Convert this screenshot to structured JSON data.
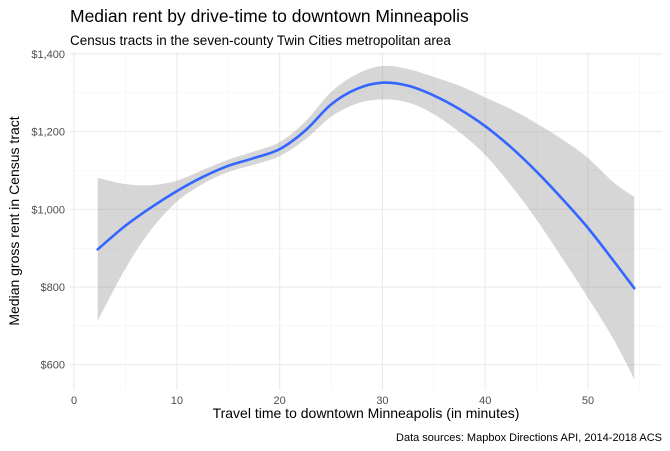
{
  "chart_data": {
    "type": "line",
    "title": "Median rent by drive-time to downtown Minneapolis",
    "subtitle": "Census tracts in the seven-county Twin Cities metropolitan area",
    "xlabel": "Travel time to downtown Minneapolis (in minutes)",
    "ylabel": "Median gross rent in Census tract",
    "caption": "Data sources: Mapbox Directions API, 2014-2018 ACS",
    "xlim": [
      -0.4,
      57.2
    ],
    "ylim": [
      535,
      1405
    ],
    "x_ticks": [
      0,
      10,
      20,
      30,
      40,
      50
    ],
    "x_tick_labels": [
      "0",
      "10",
      "20",
      "30",
      "40",
      "50"
    ],
    "y_ticks": [
      600,
      800,
      1000,
      1200,
      1400
    ],
    "y_tick_labels": [
      "$600",
      "$800",
      "$1,000",
      "$1,200",
      "$1,400"
    ],
    "grid": true,
    "colors": {
      "line": "#3366ff",
      "ribbon": "#999999",
      "grid": "#ebebeb"
    },
    "series": [
      {
        "x": [
          2.3,
          5,
          7.5,
          10,
          12.5,
          15,
          17.5,
          20,
          22.5,
          25,
          27.5,
          30,
          32.5,
          35,
          37.5,
          40,
          42.5,
          45,
          47.5,
          50,
          52.5,
          54.5
        ],
        "y": [
          897,
          958,
          1005,
          1047,
          1083,
          1112,
          1132,
          1155,
          1203,
          1270,
          1310,
          1326,
          1318,
          1293,
          1258,
          1214,
          1160,
          1097,
          1027,
          952,
          867,
          797
        ],
        "lower": [
          713,
          848,
          948,
          1020,
          1065,
          1096,
          1115,
          1137,
          1180,
          1238,
          1272,
          1283,
          1275,
          1245,
          1198,
          1140,
          1062,
          973,
          874,
          772,
          665,
          563
        ],
        "upper": [
          1081,
          1065,
          1062,
          1074,
          1101,
          1128,
          1149,
          1173,
          1226,
          1302,
          1348,
          1369,
          1361,
          1341,
          1318,
          1288,
          1258,
          1221,
          1180,
          1132,
          1069,
          1032
        ]
      }
    ]
  }
}
